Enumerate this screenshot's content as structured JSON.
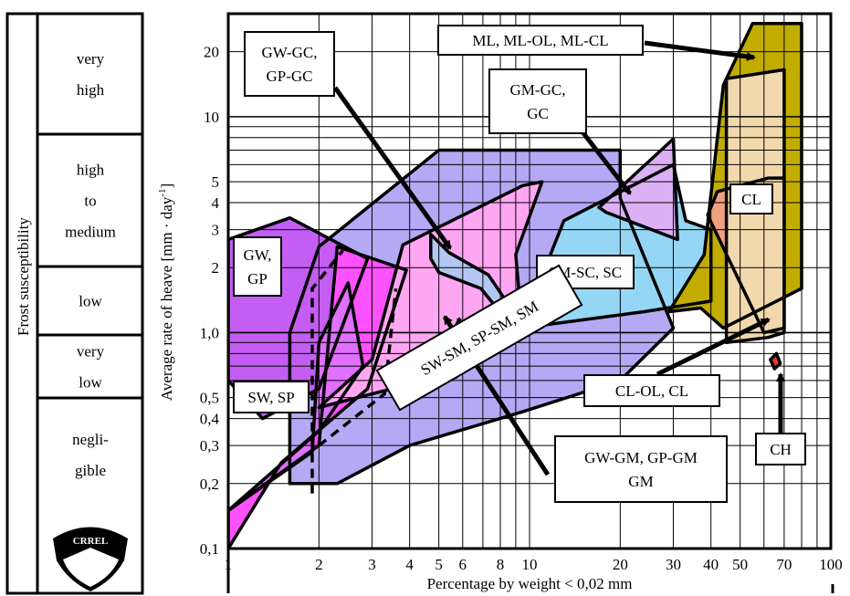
{
  "side_panel": {
    "title": "Frost susceptibility",
    "rows": [
      {
        "lines": [
          "very",
          "high"
        ]
      },
      {
        "lines": [
          "high",
          "to",
          "medium"
        ]
      },
      {
        "lines": [
          "low"
        ]
      },
      {
        "lines": [
          "very",
          "low"
        ]
      },
      {
        "lines": [
          "negli-",
          "gible"
        ]
      }
    ],
    "logo_text": "CRREL"
  },
  "chart_data": {
    "type": "area",
    "xlabel": "Percentage by weight < 0,02 mm",
    "ylabel_main": "Average rate of heave  [mm · day",
    "ylabel_sup": "-1",
    "ylabel_end": "]",
    "x_scale": "log",
    "y_scale": "log",
    "xlim": [
      1,
      100
    ],
    "ylim": [
      0.1,
      30
    ],
    "grid": true,
    "x_ticks": [
      {
        "v": 1,
        "label": "1"
      },
      {
        "v": 2,
        "label": "2"
      },
      {
        "v": 3,
        "label": "3"
      },
      {
        "v": 4,
        "label": "4"
      },
      {
        "v": 5,
        "label": "5"
      },
      {
        "v": 6,
        "label": "6"
      },
      {
        "v": 8,
        "label": "8"
      },
      {
        "v": 10,
        "label": "10"
      },
      {
        "v": 20,
        "label": "20"
      },
      {
        "v": 30,
        "label": "30"
      },
      {
        "v": 40,
        "label": "40"
      },
      {
        "v": 50,
        "label": "50"
      },
      {
        "v": 70,
        "label": "70"
      },
      {
        "v": 100,
        "label": "100"
      }
    ],
    "y_ticks": [
      {
        "v": 0.1,
        "label": "0,1"
      },
      {
        "v": 0.2,
        "label": "0,2"
      },
      {
        "v": 0.3,
        "label": "0,3"
      },
      {
        "v": 0.4,
        "label": "0,4"
      },
      {
        "v": 0.5,
        "label": "0,5"
      },
      {
        "v": 1,
        "label": "1,0"
      },
      {
        "v": 2,
        "label": "2"
      },
      {
        "v": 3,
        "label": "3"
      },
      {
        "v": 4,
        "label": "4"
      },
      {
        "v": 5,
        "label": "5"
      },
      {
        "v": 10,
        "label": "10"
      },
      {
        "v": 20,
        "label": "20"
      }
    ],
    "regions": [
      {
        "group": "GW-GM, GP-GM GM",
        "color": "#b5a9f5",
        "points": [
          [
            2,
            0.2
          ],
          [
            2.3,
            0.2
          ],
          [
            4,
            0.3
          ],
          [
            9.5,
            0.43
          ],
          [
            20,
            0.6
          ],
          [
            30,
            1.05
          ],
          [
            20,
            4.2
          ],
          [
            20,
            7
          ],
          [
            5,
            7
          ],
          [
            2,
            2.5
          ],
          [
            1.6,
            1.0
          ],
          [
            1.6,
            0.2
          ]
        ]
      },
      {
        "group": "GW, GP",
        "color": "#c45ef2",
        "points": [
          [
            1,
            0.6
          ],
          [
            1,
            2.7
          ],
          [
            1.6,
            3.4
          ],
          [
            2.9,
            2.2
          ],
          [
            2,
            0.55
          ],
          [
            1.3,
            0.4
          ]
        ]
      },
      {
        "group": "SW, SP",
        "color": "#ff52ff",
        "points": [
          [
            1,
            0.1
          ],
          [
            1,
            0.15
          ],
          [
            2,
            0.3
          ],
          [
            2.3,
            2.5
          ],
          [
            3.9,
            1.95
          ],
          [
            2.9,
            0.55
          ],
          [
            1.5,
            0.25
          ]
        ]
      },
      {
        "group": "SW, SP",
        "color": "#e070ff",
        "points": [
          [
            1,
            0.15
          ],
          [
            1.9,
            0.28
          ],
          [
            2,
            0.9
          ],
          [
            2.5,
            1.7
          ],
          [
            2.8,
            0.7
          ],
          [
            2,
            0.35
          ]
        ]
      },
      {
        "group": "SW-SM, SP-SM, SM",
        "color": "#ffa6f2",
        "points": [
          [
            2,
            0.45
          ],
          [
            3.5,
            0.55
          ],
          [
            6.5,
            0.88
          ],
          [
            9.4,
            1.15
          ],
          [
            9,
            2.3
          ],
          [
            11,
            5.0
          ],
          [
            9.5,
            4.8
          ],
          [
            3.8,
            2.55
          ],
          [
            3,
            0.75
          ],
          [
            2,
            0.45
          ]
        ]
      },
      {
        "group": "GW-GC, GP-GC",
        "color": "#b2c8f2",
        "points": [
          [
            4.7,
            2.85
          ],
          [
            5.4,
            2.35
          ],
          [
            7.3,
            1.85
          ],
          [
            9.2,
            1.15
          ],
          [
            8.8,
            1.05
          ],
          [
            6.9,
            1.6
          ],
          [
            5,
            1.9
          ],
          [
            4.7,
            2.2
          ]
        ]
      },
      {
        "group": "SM-SC, SC",
        "color": "#96d6f5",
        "points": [
          [
            9.4,
            1.05
          ],
          [
            24,
            1.25
          ],
          [
            40,
            1.4
          ],
          [
            40,
            3.0
          ],
          [
            33,
            3.3
          ],
          [
            30,
            6
          ],
          [
            13,
            3.3
          ]
        ]
      },
      {
        "group": "GM-GC, GC",
        "color": "#dcb0f5",
        "points": [
          [
            17,
            3.8
          ],
          [
            30,
            7.9
          ],
          [
            31,
            2.7
          ],
          [
            18,
            3.6
          ]
        ]
      },
      {
        "group": "ML, ML-OL, ML-CL",
        "color": "#c2ac00",
        "points": [
          [
            29,
            1.25
          ],
          [
            38,
            2.3
          ],
          [
            44,
            14
          ],
          [
            55,
            27
          ],
          [
            80,
            27
          ],
          [
            80,
            1.6
          ],
          [
            44,
            1.05
          ],
          [
            37,
            1.3
          ]
        ]
      },
      {
        "group": "CL-OL, CL",
        "color": "#f0a07d",
        "points": [
          [
            39,
            3.5
          ],
          [
            42,
            4.5
          ],
          [
            62,
            5.2
          ],
          [
            70,
            5.2
          ],
          [
            70,
            1.05
          ],
          [
            60,
            1.0
          ]
        ]
      },
      {
        "group": "CL",
        "color": "#f2d9ad",
        "points": [
          [
            45,
            15
          ],
          [
            70,
            16.5
          ],
          [
            70,
            1.0
          ],
          [
            62,
            0.95
          ],
          [
            45,
            0.9
          ]
        ]
      },
      {
        "group": "CH",
        "color": "#e8382b",
        "points": [
          [
            63,
            0.75
          ],
          [
            66,
            0.8
          ],
          [
            68,
            0.72
          ],
          [
            65,
            0.68
          ]
        ]
      }
    ],
    "annotations": [
      {
        "text": "GW-GC,\nGP-GC"
      },
      {
        "text": "ML, ML-OL, ML-CL"
      },
      {
        "text": "GM-GC,\nGC"
      },
      {
        "text": "CL"
      },
      {
        "text": "GW,\nGP"
      },
      {
        "text": "SM-SC, SC"
      },
      {
        "text": "SW, SP"
      },
      {
        "text": "SW-SM, SP-SM, SM"
      },
      {
        "text": "CL-OL, CL"
      },
      {
        "text": "GW-GM, GP-GM\nGM"
      },
      {
        "text": "CH"
      }
    ]
  }
}
